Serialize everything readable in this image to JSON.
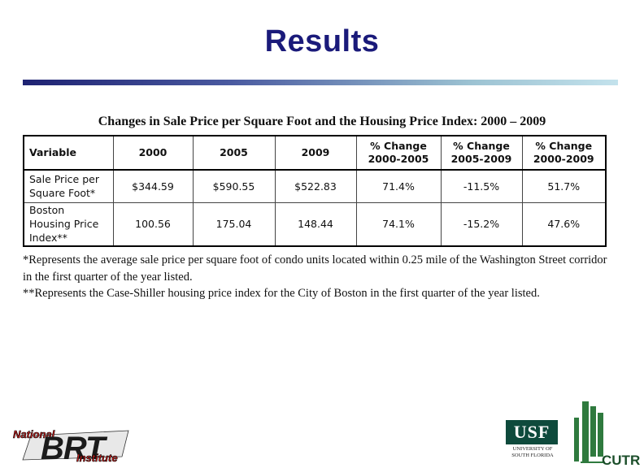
{
  "slide": {
    "title": "Results"
  },
  "table": {
    "caption": "Changes in Sale Price per Square Foot and the Housing Price Index:  2000 – 2009",
    "headers": [
      [
        "Variable"
      ],
      [
        "2000"
      ],
      [
        "2005"
      ],
      [
        "2009"
      ],
      [
        "% Change",
        "2000-2005"
      ],
      [
        "% Change",
        "2005-2009"
      ],
      [
        "% Change",
        "2000-2009"
      ]
    ],
    "rows": [
      {
        "label": [
          "Sale Price per",
          "Square Foot*"
        ],
        "cells": [
          "$344.59",
          "$590.55",
          "$522.83",
          "71.4%",
          "-11.5%",
          "51.7%"
        ]
      },
      {
        "label": [
          "Boston",
          "Housing Price",
          "Index**"
        ],
        "cells": [
          "100.56",
          "175.04",
          "148.44",
          "74.1%",
          "-15.2%",
          "47.6%"
        ]
      }
    ]
  },
  "footnotes": [
    "*Represents the average sale price per square foot of condo units located within 0.25 mile of the Washington Street corridor in the first quarter of the year listed.",
    "**Represents the Case-Shiller housing price index for the City of Boston in the first quarter of the year listed."
  ],
  "logos": {
    "brt": {
      "line1": "National",
      "line2": "BRT",
      "line3": "Institute"
    },
    "usf": {
      "mark": "USF",
      "line1": "UNIVERSITY OF",
      "line2": "SOUTH FLORIDA"
    },
    "cutr": {
      "mark": "CUTR"
    }
  },
  "colors": {
    "title": "#1a1a7a",
    "rule_start": "#1e2272",
    "rule_end": "#c3e2ec",
    "usf_green": "#0e4a3c",
    "cutr_green": "#2f7a3e",
    "brt_red": "#c8201e"
  }
}
